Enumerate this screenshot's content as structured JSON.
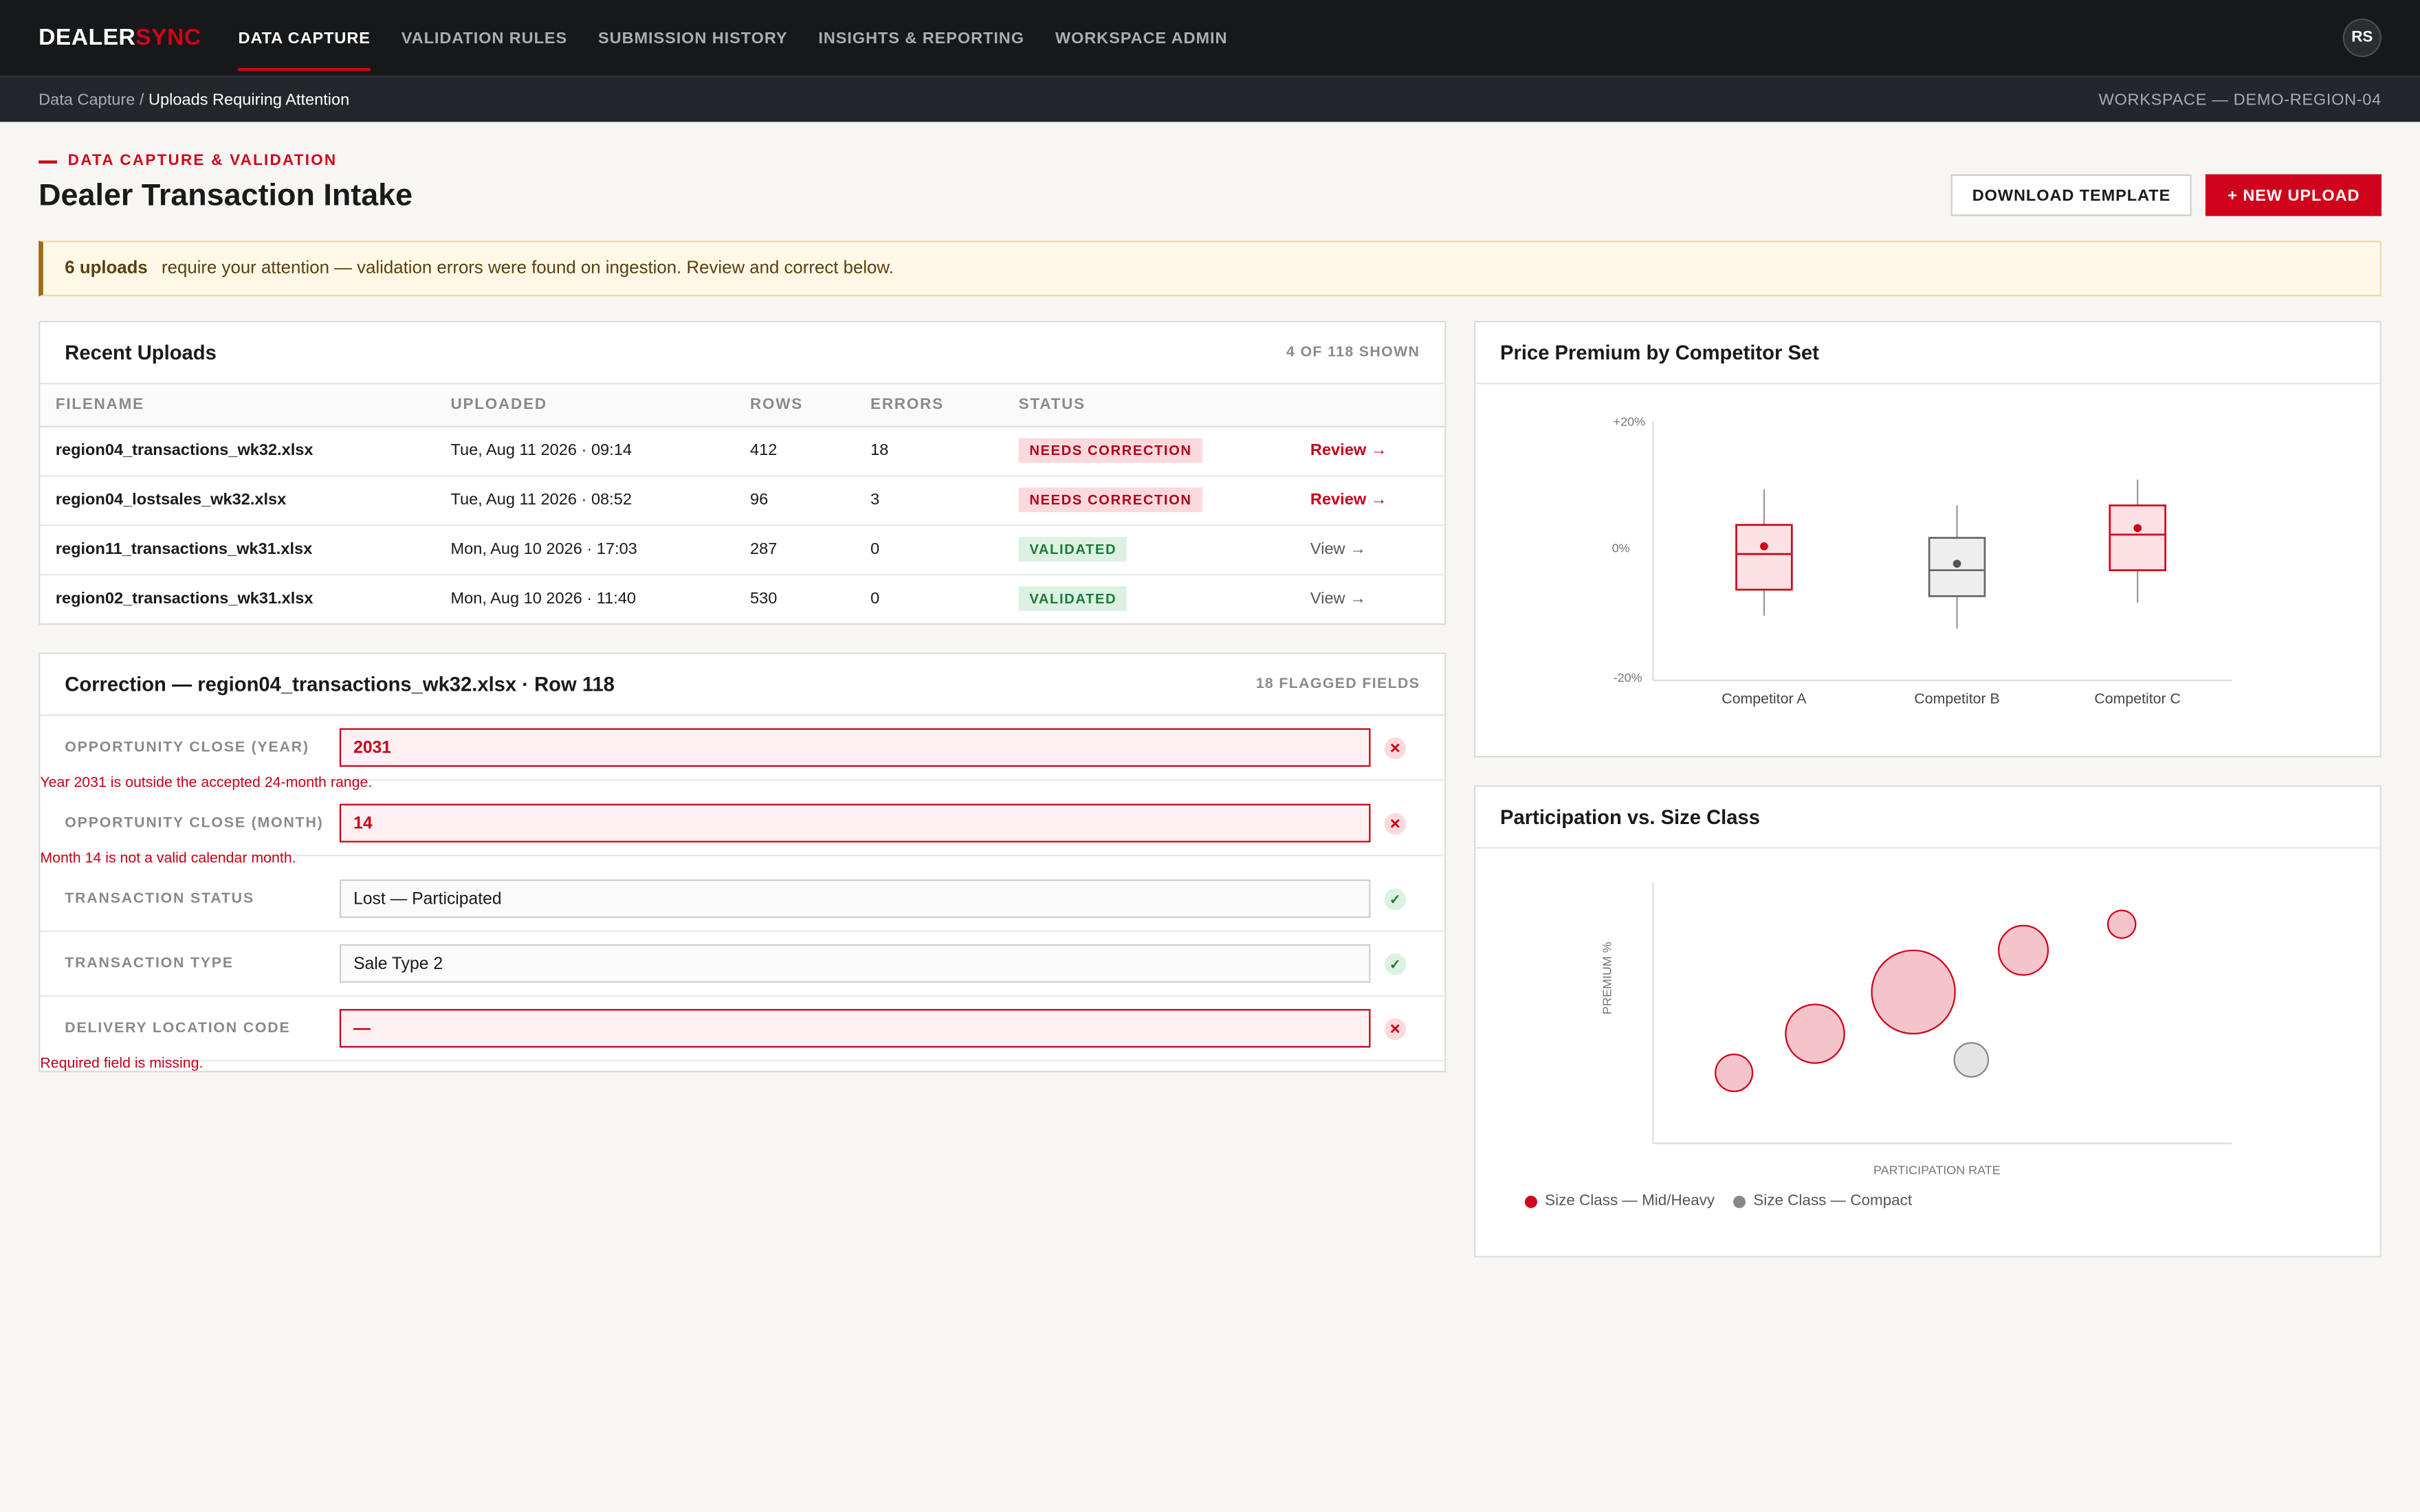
{
  "brand": {
    "name_a": "DEALER",
    "name_b": "SYNC"
  },
  "nav": {
    "items": [
      {
        "label": "DATA CAPTURE"
      },
      {
        "label": "VALIDATION RULES"
      },
      {
        "label": "SUBMISSION HISTORY"
      },
      {
        "label": "INSIGHTS & REPORTING"
      },
      {
        "label": "WORKSPACE ADMIN"
      }
    ],
    "active_index": 0,
    "avatar_initials": "RS"
  },
  "breadcrumb": {
    "parent": "Data Capture /",
    "current": "Uploads Requiring Attention"
  },
  "workspace_label": "WORKSPACE — DEMO-REGION-04",
  "header": {
    "eyebrow": "DATA CAPTURE & VALIDATION",
    "title": "Dealer Transaction Intake",
    "download_label": "DOWNLOAD TEMPLATE",
    "new_upload_label": "+ NEW UPLOAD"
  },
  "alert": {
    "count": "6 uploads",
    "message": "require your attention — validation errors were found on ingestion. Review and correct below."
  },
  "uploads": {
    "title": "Recent Uploads",
    "meta": "4 OF 118 SHOWN",
    "columns": [
      "FILENAME",
      "UPLOADED",
      "ROWS",
      "ERRORS",
      "STATUS"
    ],
    "rows": [
      {
        "filename": "region04_transactions_wk32.xlsx",
        "uploaded": "Tue, Aug 11 2026 · 09:14",
        "rows": "412",
        "errors": "18",
        "status": "NEEDS CORRECTION",
        "action": "Review →"
      },
      {
        "filename": "region04_lostsales_wk32.xlsx",
        "uploaded": "Tue, Aug 11 2026 · 08:52",
        "rows": "96",
        "errors": "3",
        "status": "NEEDS CORRECTION",
        "action": "Review →"
      },
      {
        "filename": "region11_transactions_wk31.xlsx",
        "uploaded": "Mon, Aug 10 2026 · 17:03",
        "rows": "287",
        "errors": "0",
        "status": "VALIDATED",
        "action": "View →"
      },
      {
        "filename": "region02_transactions_wk31.xlsx",
        "uploaded": "Mon, Aug 10 2026 · 11:40",
        "rows": "530",
        "errors": "0",
        "status": "VALIDATED",
        "action": "View →"
      }
    ]
  },
  "correction": {
    "title": "Correction — region04_transactions_wk32.xlsx · Row 118",
    "meta": "18 FLAGGED FIELDS",
    "fields": [
      {
        "label": "OPPORTUNITY CLOSE (YEAR)",
        "value": "2031",
        "error": "Year 2031 is outside the accepted 24-month range."
      },
      {
        "label": "OPPORTUNITY CLOSE (MONTH)",
        "value": "14",
        "error": "Month 14 is not a valid calendar month."
      },
      {
        "label": "TRANSACTION STATUS",
        "value": "Lost — Participated"
      },
      {
        "label": "TRANSACTION TYPE",
        "value": "Sale Type 2"
      },
      {
        "label": "DELIVERY LOCATION CODE",
        "value": "—",
        "error": "Required field is missing."
      }
    ],
    "bad_symbol": "✕",
    "good_symbol": "✓"
  },
  "chart_data": [
    {
      "type": "box",
      "title": "Price Premium by Competitor Set",
      "y_ticks": [
        "+20%",
        "0%",
        "-20%"
      ],
      "ylim": [
        -20,
        20
      ],
      "categories": [
        "Competitor A",
        "Competitor B",
        "Competitor C"
      ],
      "boxes": [
        {
          "min": -10,
          "q1": -6,
          "median": -0.5,
          "q3": 4,
          "max": 9.5,
          "mean": 0.7,
          "color": "#d0021b"
        },
        {
          "min": -12,
          "q1": -7,
          "median": -3,
          "q3": 2,
          "max": 7,
          "mean": -2,
          "color": "#666666"
        },
        {
          "min": -8,
          "q1": -3,
          "median": 2.5,
          "q3": 7,
          "max": 11,
          "mean": 3.5,
          "color": "#d0021b"
        }
      ]
    },
    {
      "type": "scatter",
      "title": "Participation vs. Size Class",
      "xlabel": "PARTICIPATION RATE",
      "ylabel": "PREMIUM %",
      "series": [
        {
          "name": "Size Class — Mid/Heavy",
          "color": "#d0021b",
          "points": [
            {
              "x": 0.14,
              "y": 0.27,
              "size": 12
            },
            {
              "x": 0.28,
              "y": 0.42,
              "size": 19
            },
            {
              "x": 0.45,
              "y": 0.58,
              "size": 27
            },
            {
              "x": 0.64,
              "y": 0.74,
              "size": 16
            },
            {
              "x": 0.81,
              "y": 0.84,
              "size": 9
            }
          ]
        },
        {
          "name": "Size Class — Compact",
          "color": "#888888",
          "points": [
            {
              "x": 0.55,
              "y": 0.32,
              "size": 11
            }
          ]
        }
      ]
    }
  ]
}
